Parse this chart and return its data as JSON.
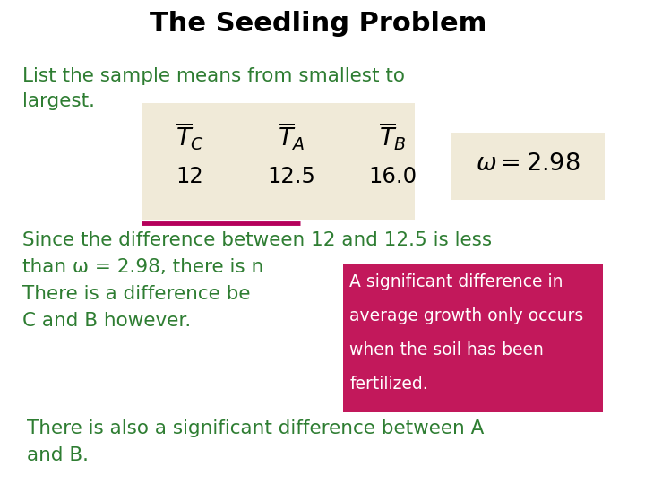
{
  "title": "The Seedling Problem",
  "title_fontsize": 22,
  "title_bold": true,
  "title_color": "#000000",
  "background_color": "#ffffff",
  "text_color": "#2e7d32",
  "line1": "List the sample means from smallest to",
  "line2": "largest.",
  "table_bg": "#f0ead8",
  "omega_box_bg": "#f0ead8",
  "underline_color": "#b5005b",
  "para1_line1": "Since the difference between 12 and 12.5 is less",
  "para1_line2": "than ω = 2.98, there is n",
  "para1_line3": "There is a difference be",
  "para1_line4": "C and B however.",
  "popup_bg": "#c2185b",
  "popup_text_color": "#ffffff",
  "popup_line1": "A significant difference in",
  "popup_line2": "average growth only occurs",
  "popup_line3": "when the soil has been",
  "popup_line4": "fertilized.",
  "para2_line1": "There is also a significant difference between A",
  "para2_line2": "and B.",
  "text_fontsize": 15.5
}
